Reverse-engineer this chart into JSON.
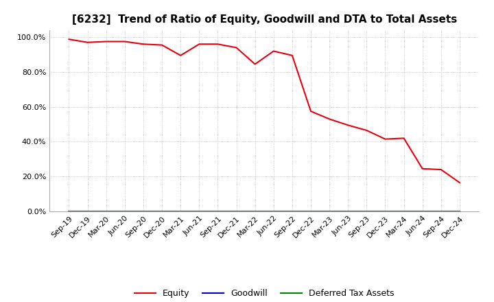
{
  "title": "[6232]  Trend of Ratio of Equity, Goodwill and DTA to Total Assets",
  "x_labels": [
    "Sep-19",
    "Dec-19",
    "Mar-20",
    "Jun-20",
    "Sep-20",
    "Dec-20",
    "Mar-21",
    "Jun-21",
    "Sep-21",
    "Dec-21",
    "Mar-22",
    "Jun-22",
    "Sep-22",
    "Dec-22",
    "Mar-23",
    "Jun-23",
    "Sep-23",
    "Dec-23",
    "Mar-24",
    "Jun-24",
    "Sep-24",
    "Dec-24"
  ],
  "equity": [
    0.988,
    0.97,
    0.975,
    0.975,
    0.96,
    0.955,
    0.895,
    0.96,
    0.96,
    0.94,
    0.845,
    0.92,
    0.895,
    0.575,
    0.53,
    0.495,
    0.465,
    0.415,
    0.42,
    0.245,
    0.24,
    0.165
  ],
  "goodwill": [
    0.0,
    0.0,
    0.0,
    0.0,
    0.0,
    0.0,
    0.0,
    0.0,
    0.0,
    0.0,
    0.0,
    0.0,
    0.0,
    0.0,
    0.0,
    0.0,
    0.0,
    0.0,
    0.0,
    0.0,
    0.0,
    0.0
  ],
  "deferred_tax": [
    0.0,
    0.0,
    0.0,
    0.0,
    0.0,
    0.0,
    0.0,
    0.0,
    0.0,
    0.0,
    0.0,
    0.0,
    0.0,
    0.0,
    0.0,
    0.0,
    0.0,
    0.0,
    0.0,
    0.0,
    0.0,
    0.0
  ],
  "equity_color": "#e8000d",
  "goodwill_color": "#0000cc",
  "deferred_tax_color": "#008000",
  "background_color": "#ffffff",
  "plot_bg_color": "#ffffff",
  "grid_color": "#bbbbbb",
  "ylim": [
    0.0,
    1.04
  ],
  "yticks": [
    0.0,
    0.2,
    0.4,
    0.6,
    0.8,
    1.0
  ],
  "title_fontsize": 11,
  "tick_fontsize": 8,
  "legend_fontsize": 9
}
